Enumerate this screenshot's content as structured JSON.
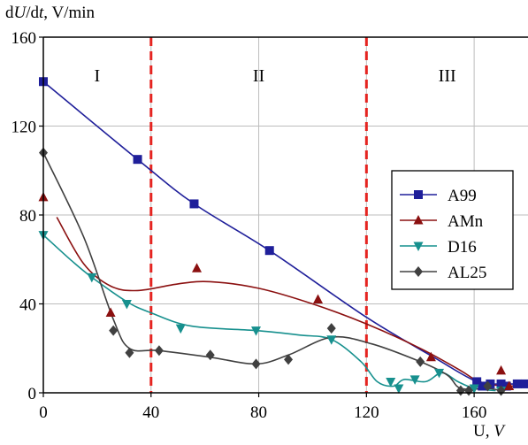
{
  "chart_data": {
    "type": "scatter",
    "ylabel_parts": [
      "d",
      "U",
      "/d",
      "t",
      ", V/min"
    ],
    "xlabel_parts": [
      "U",
      ", V"
    ],
    "xlim": [
      0,
      180
    ],
    "ylim": [
      0,
      160
    ],
    "xticks": [
      0,
      40,
      80,
      120,
      160
    ],
    "yticks": [
      0,
      40,
      80,
      120,
      160
    ],
    "grid": true,
    "legend_position": "right",
    "regions": [
      {
        "label": "I",
        "x": 20
      },
      {
        "label": "II",
        "x": 80
      },
      {
        "label": "III",
        "x": 150
      }
    ],
    "region_boundaries": [
      40,
      120
    ],
    "boundary_color": "#e52420",
    "series": [
      {
        "name": "A99",
        "color": "#1f1f9a",
        "marker": "square",
        "points": [
          [
            0,
            140
          ],
          [
            35,
            105
          ],
          [
            56,
            85
          ],
          [
            84,
            64
          ],
          [
            161,
            5
          ],
          [
            163,
            3
          ],
          [
            166,
            4
          ],
          [
            170,
            4
          ],
          [
            172,
            3
          ],
          [
            176,
            4
          ],
          [
            179,
            4
          ]
        ],
        "curve": [
          [
            0,
            140
          ],
          [
            35,
            105
          ],
          [
            56,
            85
          ],
          [
            84,
            64
          ],
          [
            120,
            34
          ],
          [
            145,
            16
          ],
          [
            161,
            5
          ],
          [
            170,
            4
          ],
          [
            180,
            4
          ]
        ]
      },
      {
        "name": "AMn",
        "color": "#8b1010",
        "marker": "triangle-up",
        "points": [
          [
            0,
            88
          ],
          [
            25,
            36
          ],
          [
            57,
            56
          ],
          [
            102,
            42
          ],
          [
            144,
            16
          ],
          [
            170,
            10
          ],
          [
            173,
            3
          ]
        ],
        "curve": [
          [
            5,
            79
          ],
          [
            15,
            58
          ],
          [
            25,
            48
          ],
          [
            35,
            46
          ],
          [
            50,
            49
          ],
          [
            62,
            50
          ],
          [
            80,
            47
          ],
          [
            100,
            40
          ],
          [
            120,
            31
          ],
          [
            140,
            20
          ],
          [
            155,
            10
          ],
          [
            162,
            5
          ],
          [
            172,
            3
          ],
          [
            180,
            4
          ]
        ]
      },
      {
        "name": "D16",
        "color": "#17908e",
        "marker": "triangle-down",
        "points": [
          [
            0,
            71
          ],
          [
            18,
            52
          ],
          [
            31,
            40
          ],
          [
            51,
            29
          ],
          [
            79,
            28
          ],
          [
            107,
            24
          ],
          [
            129,
            5
          ],
          [
            132,
            2
          ],
          [
            138,
            6
          ],
          [
            147,
            9
          ],
          [
            160,
            2
          ],
          [
            170,
            1
          ]
        ],
        "curve": [
          [
            0,
            71
          ],
          [
            10,
            60
          ],
          [
            18,
            52
          ],
          [
            31,
            41
          ],
          [
            40,
            36
          ],
          [
            55,
            30
          ],
          [
            79,
            28
          ],
          [
            95,
            26
          ],
          [
            107,
            24
          ],
          [
            118,
            14
          ],
          [
            124,
            5
          ],
          [
            130,
            3
          ],
          [
            134,
            6
          ],
          [
            142,
            5
          ],
          [
            148,
            9
          ],
          [
            154,
            5
          ],
          [
            160,
            2
          ],
          [
            168,
            1
          ]
        ]
      },
      {
        "name": "AL25",
        "color": "#404040",
        "marker": "diamond",
        "points": [
          [
            0,
            108
          ],
          [
            26,
            28
          ],
          [
            32,
            18
          ],
          [
            43,
            19
          ],
          [
            62,
            17
          ],
          [
            79,
            13
          ],
          [
            91,
            15
          ],
          [
            107,
            29
          ],
          [
            140,
            14
          ],
          [
            155,
            1
          ],
          [
            158,
            1
          ],
          [
            165,
            3
          ],
          [
            170,
            1
          ]
        ],
        "curve": [
          [
            0,
            108
          ],
          [
            15,
            70
          ],
          [
            26,
            33
          ],
          [
            32,
            20
          ],
          [
            43,
            19
          ],
          [
            62,
            16
          ],
          [
            79,
            13
          ],
          [
            91,
            17
          ],
          [
            107,
            25
          ],
          [
            122,
            22
          ],
          [
            140,
            14
          ],
          [
            150,
            8
          ],
          [
            155,
            2
          ],
          [
            165,
            2
          ],
          [
            170,
            1
          ]
        ]
      }
    ]
  }
}
